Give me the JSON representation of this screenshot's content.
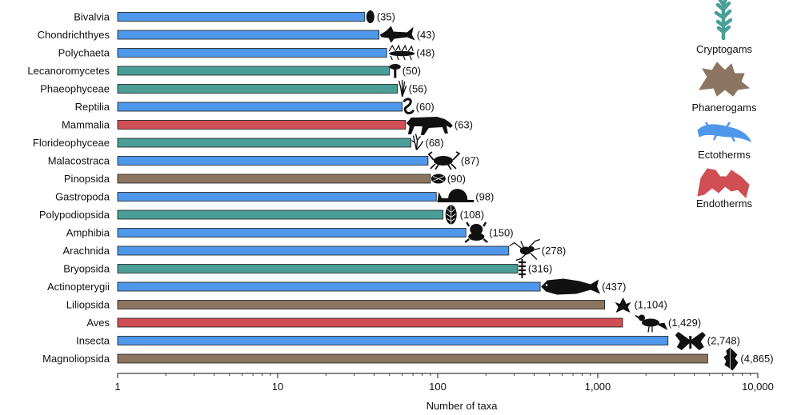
{
  "chart_data": {
    "type": "bar",
    "orientation": "horizontal",
    "xscale": "log",
    "xlim": [
      1,
      10000
    ],
    "xlabel": "Number of taxa",
    "xticks": [
      {
        "value": 1,
        "label": "1"
      },
      {
        "value": 10,
        "label": "10"
      },
      {
        "value": 100,
        "label": "100"
      },
      {
        "value": 1000,
        "label": "1,000"
      },
      {
        "value": 10000,
        "label": "10,000"
      }
    ],
    "legend_position": "right",
    "groups": [
      {
        "key": "cryptogams",
        "label": "Cryptogams",
        "color": "#4a9e96",
        "icon": "seaweed-icon"
      },
      {
        "key": "phanerogams",
        "label": "Phanerogams",
        "color": "#8b7560",
        "icon": "leaf-icon"
      },
      {
        "key": "ectotherms",
        "label": "Ectotherms",
        "color": "#4f97ea",
        "icon": "lizard-icon"
      },
      {
        "key": "endotherms",
        "label": "Endotherms",
        "color": "#cf4f55",
        "icon": "bat-icon"
      }
    ],
    "bars": [
      {
        "category": "Bivalvia",
        "value": 35,
        "label": "(35)",
        "group": "ectotherms",
        "icon": "bivalve-icon"
      },
      {
        "category": "Chondrichthyes",
        "value": 43,
        "label": "(43)",
        "group": "ectotherms",
        "icon": "shark-icon"
      },
      {
        "category": "Polychaeta",
        "value": 48,
        "label": "(48)",
        "group": "ectotherms",
        "icon": "worm-icon"
      },
      {
        "category": "Lecanoromycetes",
        "value": 50,
        "label": "(50)",
        "group": "cryptogams",
        "icon": "lichen-icon"
      },
      {
        "category": "Phaeophyceae",
        "value": 56,
        "label": "(56)",
        "group": "cryptogams",
        "icon": "kelp-icon"
      },
      {
        "category": "Reptilia",
        "value": 60,
        "label": "(60)",
        "group": "ectotherms",
        "icon": "snake-icon"
      },
      {
        "category": "Mammalia",
        "value": 63,
        "label": "(63)",
        "group": "endotherms",
        "icon": "cat-icon"
      },
      {
        "category": "Florideophyceae",
        "value": 68,
        "label": "(68)",
        "group": "cryptogams",
        "icon": "red-alga-icon"
      },
      {
        "category": "Malacostraca",
        "value": 87,
        "label": "(87)",
        "group": "ectotherms",
        "icon": "crab-icon"
      },
      {
        "category": "Pinopsida",
        "value": 90,
        "label": "(90)",
        "group": "phanerogams",
        "icon": "cone-icon"
      },
      {
        "category": "Gastropoda",
        "value": 98,
        "label": "(98)",
        "group": "ectotherms",
        "icon": "snail-icon"
      },
      {
        "category": "Polypodiopsida",
        "value": 108,
        "label": "(108)",
        "group": "cryptogams",
        "icon": "fern-icon"
      },
      {
        "category": "Amphibia",
        "value": 150,
        "label": "(150)",
        "group": "ectotherms",
        "icon": "frog-icon"
      },
      {
        "category": "Arachnida",
        "value": 278,
        "label": "(278)",
        "group": "ectotherms",
        "icon": "spider-icon"
      },
      {
        "category": "Bryopsida",
        "value": 316,
        "label": "(316)",
        "group": "cryptogams",
        "icon": "moss-icon"
      },
      {
        "category": "Actinopterygii",
        "value": 437,
        "label": "(437)",
        "group": "ectotherms",
        "icon": "fish-icon"
      },
      {
        "category": "Liliopsida",
        "value": 1104,
        "label": "(1,104)",
        "group": "phanerogams",
        "icon": "orchid-icon"
      },
      {
        "category": "Aves",
        "value": 1429,
        "label": "(1,429)",
        "group": "endotherms",
        "icon": "bird-icon"
      },
      {
        "category": "Insecta",
        "value": 2748,
        "label": "(2,748)",
        "group": "ectotherms",
        "icon": "butterfly-icon"
      },
      {
        "category": "Magnoliopsida",
        "value": 4865,
        "label": "(4,865)",
        "group": "phanerogams",
        "icon": "shrub-icon"
      }
    ]
  }
}
